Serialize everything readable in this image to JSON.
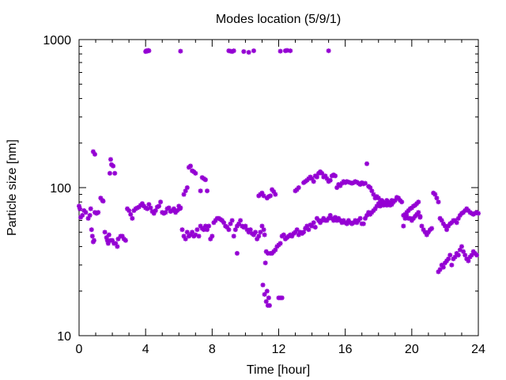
{
  "chart_data": {
    "type": "scatter",
    "title": "Modes location (5/9/1)",
    "xlabel": "Time [hour]",
    "ylabel": "Particle size [nm]",
    "xlim": [
      0,
      24
    ],
    "ylim": [
      10,
      1000
    ],
    "yscale": "log",
    "xticks": [
      "0",
      "4",
      "8",
      "12",
      "16",
      "20",
      "24"
    ],
    "yticks": [
      "10",
      "100",
      "1000"
    ],
    "grid": false,
    "legend": "none",
    "marker_color": "#9400d3",
    "points": [
      [
        0.0,
        75
      ],
      [
        0.05,
        72
      ],
      [
        0.1,
        63
      ],
      [
        0.2,
        65
      ],
      [
        0.3,
        70
      ],
      [
        0.4,
        68
      ],
      [
        0.55,
        62
      ],
      [
        0.65,
        65
      ],
      [
        0.7,
        72
      ],
      [
        0.75,
        52
      ],
      [
        0.8,
        47
      ],
      [
        0.85,
        43
      ],
      [
        0.9,
        44
      ],
      [
        0.95,
        68
      ],
      [
        0.85,
        175
      ],
      [
        0.95,
        168
      ],
      [
        1.05,
        67
      ],
      [
        1.15,
        68
      ],
      [
        1.3,
        85
      ],
      [
        1.4,
        82
      ],
      [
        1.45,
        81
      ],
      [
        1.55,
        50
      ],
      [
        1.65,
        46
      ],
      [
        1.7,
        44
      ],
      [
        1.75,
        42
      ],
      [
        1.8,
        48
      ],
      [
        1.85,
        125
      ],
      [
        1.9,
        155
      ],
      [
        1.95,
        143
      ],
      [
        2.05,
        140
      ],
      [
        2.15,
        125
      ],
      [
        1.9,
        44
      ],
      [
        2.0,
        44
      ],
      [
        2.1,
        42
      ],
      [
        2.2,
        42
      ],
      [
        2.3,
        40
      ],
      [
        2.35,
        45
      ],
      [
        2.5,
        47
      ],
      [
        2.6,
        47
      ],
      [
        2.7,
        45
      ],
      [
        2.8,
        44
      ],
      [
        2.9,
        72
      ],
      [
        3.0,
        70
      ],
      [
        3.1,
        66
      ],
      [
        3.2,
        62
      ],
      [
        3.3,
        70
      ],
      [
        3.4,
        72
      ],
      [
        3.5,
        73
      ],
      [
        3.6,
        74
      ],
      [
        3.7,
        76
      ],
      [
        3.8,
        78
      ],
      [
        3.9,
        75
      ],
      [
        4.0,
        73
      ],
      [
        4.1,
        72
      ],
      [
        4.2,
        77
      ],
      [
        4.3,
        73
      ],
      [
        4.4,
        69
      ],
      [
        4.5,
        67
      ],
      [
        4.6,
        70
      ],
      [
        4.7,
        74
      ],
      [
        4.8,
        75
      ],
      [
        4.9,
        80
      ],
      [
        5.0,
        68
      ],
      [
        5.1,
        67
      ],
      [
        5.2,
        68
      ],
      [
        5.3,
        72
      ],
      [
        5.4,
        73
      ],
      [
        5.5,
        69
      ],
      [
        5.6,
        70
      ],
      [
        5.7,
        72
      ],
      [
        5.8,
        68
      ],
      [
        5.9,
        70
      ],
      [
        6.0,
        75
      ],
      [
        6.05,
        72
      ],
      [
        6.1,
        73
      ],
      [
        6.2,
        52
      ],
      [
        6.3,
        47
      ],
      [
        6.4,
        45
      ],
      [
        6.5,
        50
      ],
      [
        6.6,
        47
      ],
      [
        6.7,
        48
      ],
      [
        6.8,
        50
      ],
      [
        6.9,
        47
      ],
      [
        7.0,
        48
      ],
      [
        7.1,
        52
      ],
      [
        7.2,
        47
      ],
      [
        7.3,
        55
      ],
      [
        7.4,
        53
      ],
      [
        7.5,
        52
      ],
      [
        7.6,
        55
      ],
      [
        7.7,
        52
      ],
      [
        7.8,
        55
      ],
      [
        7.9,
        45
      ],
      [
        8.0,
        47
      ],
      [
        8.1,
        58
      ],
      [
        8.2,
        60
      ],
      [
        8.3,
        62
      ],
      [
        8.4,
        62
      ],
      [
        8.5,
        61
      ],
      [
        8.6,
        60
      ],
      [
        8.7,
        58
      ],
      [
        8.8,
        55
      ],
      [
        8.9,
        54
      ],
      [
        9.0,
        52
      ],
      [
        9.1,
        57
      ],
      [
        9.2,
        60
      ],
      [
        9.3,
        47
      ],
      [
        9.4,
        52
      ],
      [
        9.5,
        55
      ],
      [
        9.6,
        57
      ],
      [
        9.7,
        60
      ],
      [
        9.8,
        55
      ],
      [
        9.9,
        54
      ],
      [
        10.0,
        55
      ],
      [
        10.1,
        52
      ],
      [
        10.2,
        50
      ],
      [
        10.3,
        52
      ],
      [
        10.4,
        49
      ],
      [
        10.5,
        48
      ],
      [
        10.6,
        50
      ],
      [
        10.7,
        45
      ],
      [
        10.8,
        47
      ],
      [
        10.9,
        50
      ],
      [
        11.0,
        55
      ],
      [
        11.1,
        52
      ],
      [
        11.15,
        48
      ],
      [
        6.3,
        90
      ],
      [
        6.4,
        95
      ],
      [
        6.5,
        100
      ],
      [
        6.6,
        137
      ],
      [
        6.7,
        140
      ],
      [
        6.8,
        130
      ],
      [
        6.9,
        128
      ],
      [
        7.0,
        125
      ],
      [
        7.3,
        95
      ],
      [
        7.4,
        117
      ],
      [
        7.5,
        115
      ],
      [
        7.6,
        113
      ],
      [
        7.7,
        95
      ],
      [
        9.5,
        36
      ],
      [
        10.8,
        88
      ],
      [
        10.9,
        90
      ],
      [
        11.0,
        92
      ],
      [
        11.1,
        88
      ],
      [
        11.3,
        85
      ],
      [
        11.4,
        87
      ],
      [
        11.5,
        88
      ],
      [
        11.6,
        97
      ],
      [
        11.7,
        94
      ],
      [
        11.8,
        90
      ],
      [
        11.05,
        22
      ],
      [
        11.15,
        19
      ],
      [
        11.25,
        17
      ],
      [
        11.35,
        16
      ],
      [
        11.3,
        20
      ],
      [
        11.45,
        16
      ],
      [
        11.4,
        18
      ],
      [
        12.0,
        18
      ],
      [
        12.1,
        18
      ],
      [
        12.2,
        18
      ],
      [
        11.2,
        31
      ],
      [
        11.25,
        37
      ],
      [
        11.35,
        36
      ],
      [
        11.5,
        36
      ],
      [
        11.6,
        36
      ],
      [
        11.7,
        37
      ],
      [
        11.8,
        38
      ],
      [
        11.9,
        40
      ],
      [
        12.0,
        41
      ],
      [
        12.1,
        42
      ],
      [
        12.2,
        47
      ],
      [
        12.3,
        48
      ],
      [
        12.4,
        45
      ],
      [
        12.5,
        46
      ],
      [
        12.6,
        47
      ],
      [
        12.7,
        48
      ],
      [
        12.8,
        47
      ],
      [
        12.9,
        49
      ],
      [
        13.0,
        50
      ],
      [
        13.1,
        52
      ],
      [
        13.2,
        48
      ],
      [
        13.3,
        50
      ],
      [
        13.4,
        49
      ],
      [
        13.5,
        50
      ],
      [
        13.6,
        53
      ],
      [
        13.7,
        55
      ],
      [
        13.8,
        52
      ],
      [
        13.9,
        56
      ],
      [
        14.0,
        55
      ],
      [
        14.1,
        58
      ],
      [
        14.2,
        54
      ],
      [
        14.3,
        62
      ],
      [
        14.4,
        60
      ],
      [
        14.5,
        58
      ],
      [
        14.6,
        60
      ],
      [
        14.7,
        62
      ],
      [
        14.8,
        60
      ],
      [
        14.9,
        60
      ],
      [
        15.0,
        62
      ],
      [
        15.1,
        65
      ],
      [
        15.2,
        62
      ],
      [
        15.3,
        60
      ],
      [
        15.4,
        63
      ],
      [
        15.5,
        60
      ],
      [
        15.6,
        62
      ],
      [
        15.7,
        60
      ],
      [
        15.8,
        58
      ],
      [
        15.9,
        60
      ],
      [
        16.0,
        58
      ],
      [
        16.1,
        57
      ],
      [
        16.2,
        60
      ],
      [
        16.3,
        58
      ],
      [
        16.4,
        57
      ],
      [
        16.5,
        58
      ],
      [
        16.6,
        60
      ],
      [
        16.7,
        58
      ],
      [
        16.8,
        60
      ],
      [
        16.9,
        62
      ],
      [
        17.0,
        57
      ],
      [
        17.1,
        57
      ],
      [
        17.2,
        62
      ],
      [
        17.3,
        65
      ],
      [
        17.4,
        68
      ],
      [
        17.5,
        66
      ],
      [
        17.6,
        68
      ],
      [
        17.7,
        70
      ],
      [
        17.8,
        72
      ],
      [
        17.9,
        75
      ],
      [
        18.0,
        78
      ],
      [
        18.1,
        75
      ],
      [
        18.2,
        77
      ],
      [
        18.3,
        76
      ],
      [
        18.4,
        77
      ],
      [
        18.5,
        76
      ],
      [
        18.6,
        78
      ],
      [
        18.7,
        76
      ],
      [
        18.8,
        77
      ],
      [
        13.0,
        95
      ],
      [
        13.1,
        97
      ],
      [
        13.2,
        100
      ],
      [
        13.5,
        108
      ],
      [
        13.6,
        110
      ],
      [
        13.7,
        112
      ],
      [
        13.8,
        115
      ],
      [
        13.9,
        118
      ],
      [
        14.0,
        115
      ],
      [
        14.1,
        110
      ],
      [
        14.2,
        120
      ],
      [
        14.3,
        118
      ],
      [
        14.4,
        125
      ],
      [
        14.5,
        128
      ],
      [
        14.6,
        125
      ],
      [
        14.7,
        118
      ],
      [
        14.8,
        120
      ],
      [
        14.9,
        115
      ],
      [
        15.0,
        110
      ],
      [
        15.1,
        112
      ],
      [
        15.2,
        120
      ],
      [
        15.3,
        122
      ],
      [
        15.4,
        120
      ],
      [
        15.5,
        100
      ],
      [
        15.6,
        105
      ],
      [
        15.7,
        103
      ],
      [
        15.8,
        107
      ],
      [
        15.9,
        110
      ],
      [
        16.0,
        108
      ],
      [
        16.1,
        110
      ],
      [
        16.2,
        109
      ],
      [
        16.3,
        108
      ],
      [
        16.4,
        107
      ],
      [
        16.5,
        108
      ],
      [
        16.6,
        110
      ],
      [
        16.7,
        109
      ],
      [
        16.8,
        107
      ],
      [
        16.9,
        105
      ],
      [
        17.0,
        108
      ],
      [
        17.1,
        106
      ],
      [
        17.2,
        107
      ],
      [
        17.3,
        145
      ],
      [
        17.4,
        102
      ],
      [
        17.5,
        100
      ],
      [
        17.6,
        95
      ],
      [
        17.7,
        90
      ],
      [
        17.8,
        85
      ],
      [
        17.9,
        87
      ],
      [
        18.0,
        85
      ],
      [
        18.1,
        80
      ],
      [
        18.2,
        82
      ],
      [
        18.3,
        80
      ],
      [
        18.4,
        78
      ],
      [
        18.5,
        82
      ],
      [
        18.6,
        80
      ],
      [
        18.7,
        78
      ],
      [
        18.8,
        82
      ],
      [
        18.9,
        80
      ],
      [
        19.0,
        82
      ],
      [
        19.1,
        86
      ],
      [
        19.2,
        85
      ],
      [
        19.3,
        82
      ],
      [
        19.4,
        80
      ],
      [
        19.5,
        65
      ],
      [
        19.6,
        66
      ],
      [
        19.7,
        68
      ],
      [
        19.8,
        70
      ],
      [
        19.9,
        72
      ],
      [
        20.0,
        73
      ],
      [
        20.1,
        75
      ],
      [
        20.2,
        76
      ],
      [
        20.3,
        78
      ],
      [
        20.4,
        80
      ],
      [
        20.5,
        63
      ],
      [
        19.5,
        55
      ],
      [
        19.6,
        62
      ],
      [
        19.7,
        64
      ],
      [
        19.8,
        62
      ],
      [
        19.9,
        62
      ],
      [
        20.0,
        60
      ],
      [
        20.1,
        62
      ],
      [
        20.2,
        64
      ],
      [
        20.3,
        66
      ],
      [
        20.4,
        68
      ],
      [
        20.5,
        64
      ],
      [
        20.6,
        55
      ],
      [
        20.7,
        52
      ],
      [
        20.8,
        50
      ],
      [
        20.9,
        48
      ],
      [
        21.0,
        50
      ],
      [
        21.1,
        52
      ],
      [
        21.2,
        53
      ],
      [
        21.3,
        92
      ],
      [
        21.4,
        90
      ],
      [
        21.5,
        85
      ],
      [
        21.6,
        80
      ],
      [
        21.7,
        62
      ],
      [
        21.8,
        60
      ],
      [
        21.9,
        57
      ],
      [
        22.0,
        55
      ],
      [
        22.1,
        52
      ],
      [
        22.2,
        55
      ],
      [
        22.3,
        57
      ],
      [
        22.4,
        58
      ],
      [
        22.5,
        60
      ],
      [
        22.6,
        60
      ],
      [
        22.7,
        58
      ],
      [
        22.8,
        62
      ],
      [
        22.9,
        65
      ],
      [
        23.0,
        67
      ],
      [
        23.1,
        68
      ],
      [
        23.2,
        70
      ],
      [
        23.3,
        72
      ],
      [
        23.4,
        70
      ],
      [
        23.5,
        68
      ],
      [
        23.6,
        67
      ],
      [
        23.7,
        66
      ],
      [
        23.8,
        67
      ],
      [
        23.9,
        68
      ],
      [
        24.0,
        67
      ],
      [
        21.6,
        27
      ],
      [
        21.7,
        28
      ],
      [
        21.8,
        30
      ],
      [
        21.9,
        29
      ],
      [
        22.0,
        31
      ],
      [
        22.1,
        32
      ],
      [
        22.2,
        33
      ],
      [
        22.3,
        35
      ],
      [
        22.4,
        30
      ],
      [
        22.5,
        33
      ],
      [
        22.6,
        34
      ],
      [
        22.7,
        36
      ],
      [
        22.8,
        35
      ],
      [
        22.9,
        38
      ],
      [
        23.0,
        40
      ],
      [
        23.1,
        37
      ],
      [
        23.2,
        35
      ],
      [
        23.3,
        33
      ],
      [
        23.4,
        32
      ],
      [
        23.5,
        34
      ],
      [
        23.6,
        35
      ],
      [
        23.7,
        37
      ],
      [
        23.8,
        36
      ],
      [
        23.9,
        35
      ],
      [
        4.0,
        830
      ],
      [
        4.05,
        840
      ],
      [
        4.1,
        835
      ],
      [
        4.15,
        845
      ],
      [
        4.2,
        840
      ],
      [
        6.1,
        835
      ],
      [
        9.0,
        840
      ],
      [
        9.1,
        835
      ],
      [
        9.2,
        830
      ],
      [
        9.3,
        840
      ],
      [
        9.9,
        830
      ],
      [
        10.2,
        820
      ],
      [
        10.5,
        840
      ],
      [
        12.1,
        835
      ],
      [
        12.4,
        840
      ],
      [
        12.5,
        845
      ],
      [
        12.7,
        840
      ],
      [
        15.0,
        840
      ]
    ]
  }
}
